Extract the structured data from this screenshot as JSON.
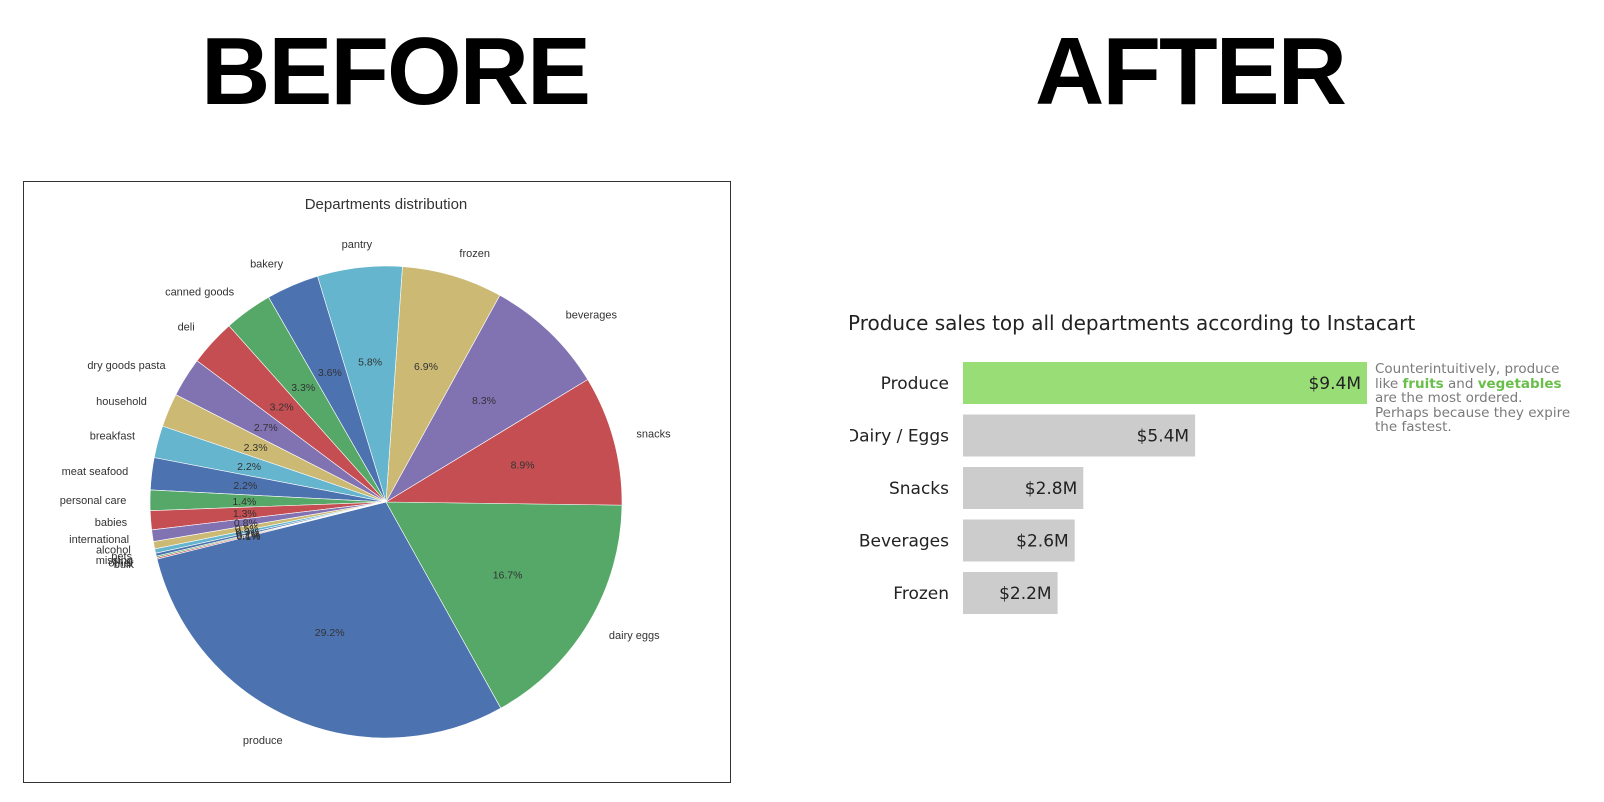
{
  "headings": {
    "before": "BEFORE",
    "after": "AFTER"
  },
  "colors": {
    "highlight": "#99dd77",
    "highlight_text": "#6abf4b",
    "bar_gray": "#cccccc",
    "pie_palette": [
      "#4c72b0",
      "#55a868",
      "#c44e52",
      "#8172b2",
      "#ccb974",
      "#64b5cd"
    ]
  },
  "chart_data": [
    {
      "type": "pie",
      "title": "Departments distribution",
      "slices": [
        {
          "label": "produce",
          "value": 29.2,
          "pct_label": "29.2%"
        },
        {
          "label": "dairy eggs",
          "value": 16.7,
          "pct_label": "16.7%"
        },
        {
          "label": "snacks",
          "value": 8.9,
          "pct_label": "8.9%"
        },
        {
          "label": "beverages",
          "value": 8.3,
          "pct_label": "8.3%"
        },
        {
          "label": "frozen",
          "value": 6.9,
          "pct_label": "6.9%"
        },
        {
          "label": "pantry",
          "value": 5.8,
          "pct_label": "5.8%"
        },
        {
          "label": "bakery",
          "value": 3.6,
          "pct_label": "3.6%"
        },
        {
          "label": "canned goods",
          "value": 3.3,
          "pct_label": "3.3%"
        },
        {
          "label": "deli",
          "value": 3.2,
          "pct_label": "3.2%"
        },
        {
          "label": "dry goods pasta",
          "value": 2.7,
          "pct_label": "2.7%"
        },
        {
          "label": "household",
          "value": 2.3,
          "pct_label": "2.3%"
        },
        {
          "label": "breakfast",
          "value": 2.2,
          "pct_label": "2.2%"
        },
        {
          "label": "meat seafood",
          "value": 2.2,
          "pct_label": "2.2%"
        },
        {
          "label": "personal care",
          "value": 1.4,
          "pct_label": "1.4%"
        },
        {
          "label": "babies",
          "value": 1.3,
          "pct_label": "1.3%"
        },
        {
          "label": "international",
          "value": 0.8,
          "pct_label": "0.8%"
        },
        {
          "label": "alcohol",
          "value": 0.5,
          "pct_label": "0.5%"
        },
        {
          "label": "pets",
          "value": 0.3,
          "pct_label": "0.3%"
        },
        {
          "label": "missing",
          "value": 0.2,
          "pct_label": "0.2%"
        },
        {
          "label": "other",
          "value": 0.1,
          "pct_label": "0.1%"
        },
        {
          "label": "bulk",
          "value": 0.1,
          "pct_label": "0.1%"
        }
      ]
    },
    {
      "type": "bar",
      "orientation": "horizontal",
      "title": "Produce sales top all departments according to Instacart",
      "categories": [
        "Produce",
        "Dairy / Eggs",
        "Snacks",
        "Beverages",
        "Frozen"
      ],
      "values": [
        9.4,
        5.4,
        2.8,
        2.6,
        2.2
      ],
      "value_labels": [
        "$9.4M",
        "$5.4M",
        "$2.8M",
        "$2.6M",
        "$2.2M"
      ],
      "highlight_index": 0,
      "unit": "$M"
    }
  ],
  "note": {
    "part1": "Counterintuitively, produce like ",
    "fruits": "fruits",
    "part2": " and ",
    "vegetables": "vegetables",
    "part3": " are the most ordered. Perhaps because they expire the fastest."
  }
}
